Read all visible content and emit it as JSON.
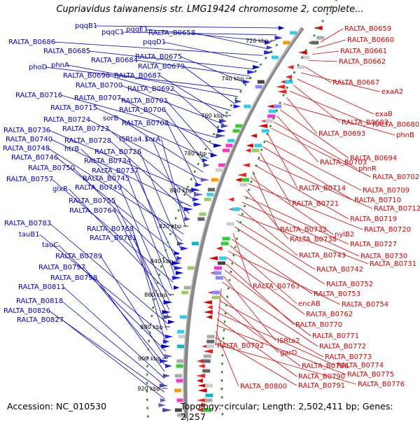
{
  "title": "Cupriavidus taiwanensis str. LMG19424 chromosome 2, complete...",
  "accession": "Accession: NC_010530",
  "summary": "Topology: circular; Length: 2,502,411 bp; Genes: 2,257",
  "colors": {
    "left_label": "#0000cc",
    "right_label": "#dd0000",
    "backbone": "#888888",
    "tick_dots": "#2a8a2a"
  },
  "ticks": [
    "720 kbp",
    "740 kbp",
    "760 kbp",
    "780 kbp",
    "800 kbp",
    "820 kbp",
    "840 kbp",
    "860 kbp",
    "880 kbp",
    "900 kbp",
    "920 kbp"
  ],
  "left_labels": [
    "pqqB1",
    "pqqC1",
    "pqqE1",
    "RALTA_B0658",
    "RALTA_B0686",
    "pqqD1",
    "RALTA_B0685",
    "RALTA_B0684",
    "RALTA_B0675",
    "phoD",
    "phnA",
    "RALTA_B0679",
    "RALTA_B0696",
    "RALTA_B0687",
    "RALTA_B0700",
    "RALTA_B0692",
    "RALTA_B0716",
    "RALTA_B0707",
    "RALTA_B0701",
    "RALTA_B0715",
    "RALTA_B0706",
    "sorB",
    "RALTA_B0724",
    "RALTA_B0708",
    "RALTA_B0736",
    "RALTA_B0723",
    "RALTA_B0740",
    "RALTA_B0728",
    "ISRta4.1",
    "sorA",
    "RALTA_B0748",
    "htrB",
    "RALTA_B0726",
    "RALTA_B0746",
    "RALTA_B0734",
    "RALTA_B0750",
    "RALTA_B0737",
    "RALTA_B0757",
    "RALTA_B0745",
    "glxR",
    "RALTA_B0749",
    "RALTA_B0755",
    "RALTA_B0764",
    "RALTA_B0783",
    "RALTA_B0768",
    "tauB1",
    "RALTA_B0781",
    "tauC",
    "RALTA_B0789",
    "RALTA_B0797",
    "RALTA_B0798",
    "RALTA_B0811",
    "RALTA_B0818",
    "RALTA_B0826",
    "RALTA_B0827"
  ],
  "right_labels": [
    "RALTA_B0659",
    "RALTA_B0660",
    "RALTA_B0661",
    "RALTA_B0662",
    "RALTA_B0667",
    "exaA2",
    "exaB",
    "RALTA_B0682",
    "RALTA_B0680",
    "RALTA_B0693",
    "phnB",
    "RALTA_B0694",
    "RALTA_B0703",
    "phnR",
    "RALTA_B0702",
    "RALTA_B0714",
    "RALTA_B0709",
    "RALTA_B0710",
    "RALTA_B0721",
    "RALTA_B0712",
    "RALTA_B0719",
    "RALTA_B0732",
    "nylB2",
    "RALTA_B0720",
    "RALTA_B0738",
    "RALTA_B0727",
    "RALTA_B0730",
    "RALTA_B0743",
    "RALTA_B0731",
    "RALTA_B0742",
    "RALTA_B0752",
    "RALTA_B0763",
    "RALTA_B0753",
    "encAB",
    "RALTA_B0754",
    "RALTA_B0762",
    "RALTA_B0770",
    "RALTA_B0771",
    "ISRta2",
    "RALTA_B0772",
    "RALTA_B0792",
    "garD",
    "RALTA_B0773",
    "RALTA_B0786",
    "RALTA_B0774",
    "RALTA_B0790",
    "RALTA_B0775",
    "RALTA_B0800",
    "RALTA_B0791",
    "RALTA_B0776"
  ]
}
